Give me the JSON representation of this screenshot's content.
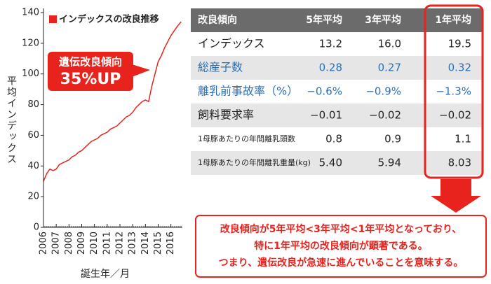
{
  "chart_data": {
    "type": "line",
    "legend": "インデックスの改良推移",
    "y_label": "平均インデックス",
    "x_label": "誕生年／月",
    "annotation": [
      "遺伝改良傾向",
      "35%UP"
    ],
    "color": "#e8231d",
    "x": [
      2006,
      2006.25,
      2006.5,
      2006.75,
      2007,
      2007.25,
      2007.5,
      2007.75,
      2008,
      2008.25,
      2008.5,
      2008.75,
      2009,
      2009.25,
      2009.5,
      2009.75,
      2010,
      2010.25,
      2010.5,
      2010.75,
      2011,
      2011.25,
      2011.5,
      2011.75,
      2012,
      2012.25,
      2012.5,
      2012.75,
      2013,
      2013.25,
      2013.5,
      2013.75,
      2014,
      2014.25,
      2014.5,
      2014.75,
      2015,
      2015.25,
      2015.5,
      2015.75,
      2016,
      2016.25,
      2016.5,
      2016.8
    ],
    "values": [
      30,
      35,
      38,
      37,
      38,
      41,
      42,
      43,
      44,
      46,
      47,
      49,
      50,
      52,
      54,
      56,
      57,
      58,
      60,
      61,
      62,
      64,
      65,
      66,
      68,
      70,
      72,
      73,
      75,
      78,
      80,
      82,
      83,
      82,
      92,
      100,
      108,
      112,
      117,
      121,
      125,
      128,
      131,
      134
    ],
    "xlim": [
      2006,
      2016.9
    ],
    "xticks": [
      2006,
      2007,
      2008,
      2009,
      2010,
      2011,
      2012,
      2013,
      2014,
      2015,
      2016
    ],
    "ylim": [
      0,
      140
    ],
    "yticks": [
      0,
      20,
      40,
      60,
      80,
      100,
      120,
      140
    ]
  },
  "table": {
    "header": [
      "改良傾向",
      "5年平均",
      "3年平均",
      "1年平均"
    ],
    "rows": [
      [
        "インデックス",
        "13.2",
        "16.0",
        "19.5"
      ],
      [
        "総産子数",
        "0.28",
        "0.27",
        "0.32"
      ],
      [
        "離乳前事故率（%）",
        "−0.6%",
        "−0.9%",
        "−1.3%"
      ],
      [
        "飼料要求率",
        "−0.01",
        "−0.02",
        "−0.02"
      ],
      [
        "1母豚あたりの年間離乳頭数",
        "0.8",
        "0.9",
        "1.1"
      ],
      [
        "1母豚あたりの年間離乳重量(kg)",
        "5.40",
        "5.94",
        "8.03"
      ]
    ]
  },
  "note": [
    "改良傾向が5年平均<3年平均<1年平均となっており、",
    "特に1年平均の改良傾向が顕著である。",
    "つまり、遺伝改良が急速に進んでいることを意味する。"
  ]
}
